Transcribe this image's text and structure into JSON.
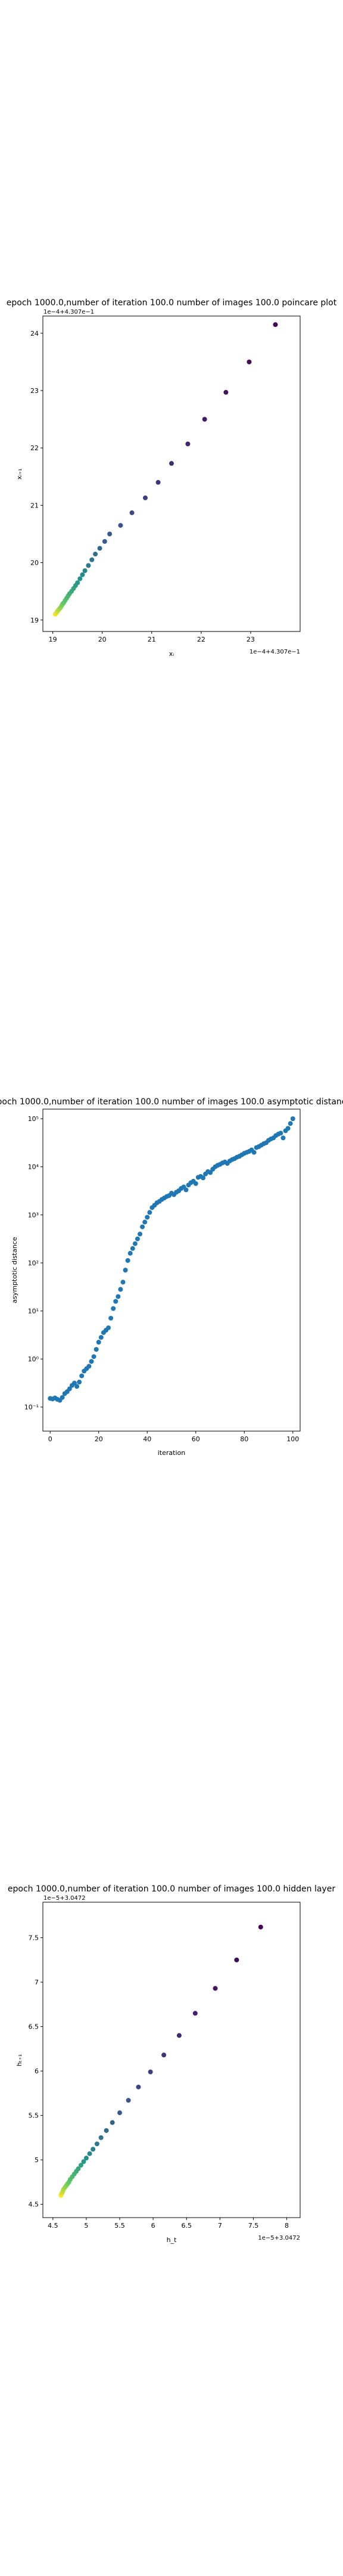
{
  "charts": [
    {
      "type": "scatter",
      "title": "epoch 1000.0,number of iteration 100.0 number of images 100.0 poincare plot",
      "xlabel": "xᵢ",
      "ylabel": "xᵢ₊₁",
      "scale_note": "1e−4+4.307e−1",
      "corner_label": "1e−4+4.307e−1",
      "xlim": [
        18.8,
        24.0
      ],
      "ylim": [
        18.8,
        24.3
      ],
      "xticks": [
        19,
        20,
        21,
        22,
        23
      ],
      "yticks": [
        19,
        20,
        21,
        22,
        23,
        24
      ],
      "color_scale": "viridis-reversed",
      "points": [
        [
          19.05,
          19.1
        ],
        [
          19.07,
          19.12
        ],
        [
          19.09,
          19.14
        ],
        [
          19.1,
          19.16
        ],
        [
          19.12,
          19.18
        ],
        [
          19.14,
          19.2
        ],
        [
          19.16,
          19.22
        ],
        [
          19.18,
          19.25
        ],
        [
          19.2,
          19.28
        ],
        [
          19.22,
          19.3
        ],
        [
          19.25,
          19.34
        ],
        [
          19.28,
          19.38
        ],
        [
          19.31,
          19.42
        ],
        [
          19.34,
          19.46
        ],
        [
          19.38,
          19.5
        ],
        [
          19.42,
          19.55
        ],
        [
          19.46,
          19.6
        ],
        [
          19.5,
          19.65
        ],
        [
          19.55,
          19.72
        ],
        [
          19.6,
          19.79
        ],
        [
          19.65,
          19.86
        ],
        [
          19.72,
          19.95
        ],
        [
          19.79,
          20.05
        ],
        [
          19.86,
          20.15
        ],
        [
          19.95,
          20.25
        ],
        [
          20.05,
          20.37
        ],
        [
          20.15,
          20.5
        ],
        [
          20.37,
          20.65
        ],
        [
          20.6,
          20.87
        ],
        [
          20.87,
          21.13
        ],
        [
          21.13,
          21.4
        ],
        [
          21.4,
          21.73
        ],
        [
          21.73,
          22.07
        ],
        [
          22.07,
          22.5
        ],
        [
          22.5,
          22.97
        ],
        [
          22.97,
          23.5
        ],
        [
          23.5,
          24.15
        ]
      ]
    },
    {
      "type": "scatter",
      "title": "epoch 1000.0,number of iteration 100.0  number of images 100.0 asymptotic distance",
      "xlabel": "iteration",
      "ylabel": "asymptotic distance",
      "log_y": true,
      "xlim": [
        -3,
        103
      ],
      "ylim_exp": [
        -1.5,
        5.2
      ],
      "xticks": [
        0,
        20,
        40,
        60,
        80,
        100
      ],
      "ytick_labels": [
        "10⁻¹",
        "10⁰",
        "10¹",
        "10²",
        "10³",
        "10⁴",
        "10⁵"
      ],
      "marker_color": "#1f77b4",
      "x": [
        0,
        1,
        2,
        3,
        4,
        5,
        6,
        7,
        8,
        9,
        10,
        11,
        12,
        13,
        14,
        15,
        16,
        17,
        18,
        19,
        20,
        21,
        22,
        23,
        24,
        25,
        26,
        27,
        28,
        29,
        30,
        31,
        32,
        33,
        34,
        35,
        36,
        37,
        38,
        39,
        40,
        41,
        42,
        43,
        44,
        45,
        46,
        47,
        48,
        49,
        50,
        51,
        52,
        53,
        54,
        55,
        56,
        57,
        58,
        59,
        60,
        61,
        62,
        63,
        64,
        65,
        66,
        67,
        68,
        69,
        70,
        71,
        72,
        73,
        74,
        75,
        76,
        77,
        78,
        79,
        80,
        81,
        82,
        83,
        84,
        85,
        86,
        87,
        88,
        89,
        90,
        91,
        92,
        93,
        94,
        95,
        96,
        97,
        98,
        99,
        100
      ],
      "y_exp": [
        -0.82,
        -0.83,
        -0.81,
        -0.84,
        -0.86,
        -0.8,
        -0.72,
        -0.68,
        -0.62,
        -0.55,
        -0.5,
        -0.57,
        -0.48,
        -0.35,
        -0.25,
        -0.2,
        -0.15,
        -0.05,
        0.05,
        0.2,
        0.35,
        0.45,
        0.55,
        0.6,
        0.65,
        0.85,
        1.05,
        1.2,
        1.3,
        1.45,
        1.6,
        1.85,
        2.05,
        2.2,
        2.3,
        2.4,
        2.5,
        2.6,
        2.75,
        2.85,
        2.95,
        3.05,
        3.15,
        3.2,
        3.25,
        3.28,
        3.32,
        3.35,
        3.38,
        3.4,
        3.45,
        3.42,
        3.47,
        3.5,
        3.55,
        3.58,
        3.52,
        3.62,
        3.67,
        3.7,
        3.65,
        3.78,
        3.8,
        3.77,
        3.85,
        3.9,
        3.88,
        3.95,
        4.0,
        4.03,
        4.05,
        4.08,
        4.1,
        4.07,
        4.12,
        4.15,
        4.17,
        4.2,
        4.22,
        4.25,
        4.28,
        4.3,
        4.32,
        4.35,
        4.3,
        4.4,
        4.42,
        4.45,
        4.48,
        4.5,
        4.55,
        4.58,
        4.6,
        4.65,
        4.68,
        4.7,
        4.6,
        4.75,
        4.8,
        4.9,
        5.0
      ]
    },
    {
      "type": "scatter",
      "title": "epoch 1000.0,number of iteration 100.0  number of images 100.0 hidden layer",
      "xlabel": "h_t",
      "ylabel": "hₜ₊₁",
      "scale_note": "1e−5+3.0472",
      "corner_label": "1e−5+3.0472",
      "xlim": [
        4.35,
        8.2
      ],
      "ylim": [
        4.35,
        7.9
      ],
      "xticks": [
        4.5,
        5.0,
        5.5,
        6.0,
        6.5,
        7.0,
        7.5,
        8.0
      ],
      "yticks": [
        4.5,
        5.0,
        5.5,
        6.0,
        6.5,
        7.0,
        7.5
      ],
      "color_scale": "viridis-reversed",
      "points": [
        [
          4.62,
          4.6
        ],
        [
          4.63,
          4.62
        ],
        [
          4.64,
          4.63
        ],
        [
          4.65,
          4.65
        ],
        [
          4.66,
          4.67
        ],
        [
          4.68,
          4.69
        ],
        [
          4.7,
          4.71
        ],
        [
          4.72,
          4.73
        ],
        [
          4.74,
          4.75
        ],
        [
          4.76,
          4.78
        ],
        [
          4.79,
          4.81
        ],
        [
          4.82,
          4.84
        ],
        [
          4.85,
          4.87
        ],
        [
          4.88,
          4.9
        ],
        [
          4.92,
          4.94
        ],
        [
          4.96,
          4.98
        ],
        [
          5.0,
          5.02
        ],
        [
          5.05,
          5.07
        ],
        [
          5.1,
          5.12
        ],
        [
          5.16,
          5.18
        ],
        [
          5.22,
          5.25
        ],
        [
          5.3,
          5.33
        ],
        [
          5.39,
          5.42
        ],
        [
          5.5,
          5.53
        ],
        [
          5.63,
          5.67
        ],
        [
          5.78,
          5.82
        ],
        [
          5.96,
          5.99
        ],
        [
          6.16,
          6.18
        ],
        [
          6.39,
          6.4
        ],
        [
          6.63,
          6.65
        ],
        [
          6.93,
          6.93
        ],
        [
          7.25,
          7.25
        ],
        [
          7.61,
          7.62
        ]
      ]
    }
  ]
}
